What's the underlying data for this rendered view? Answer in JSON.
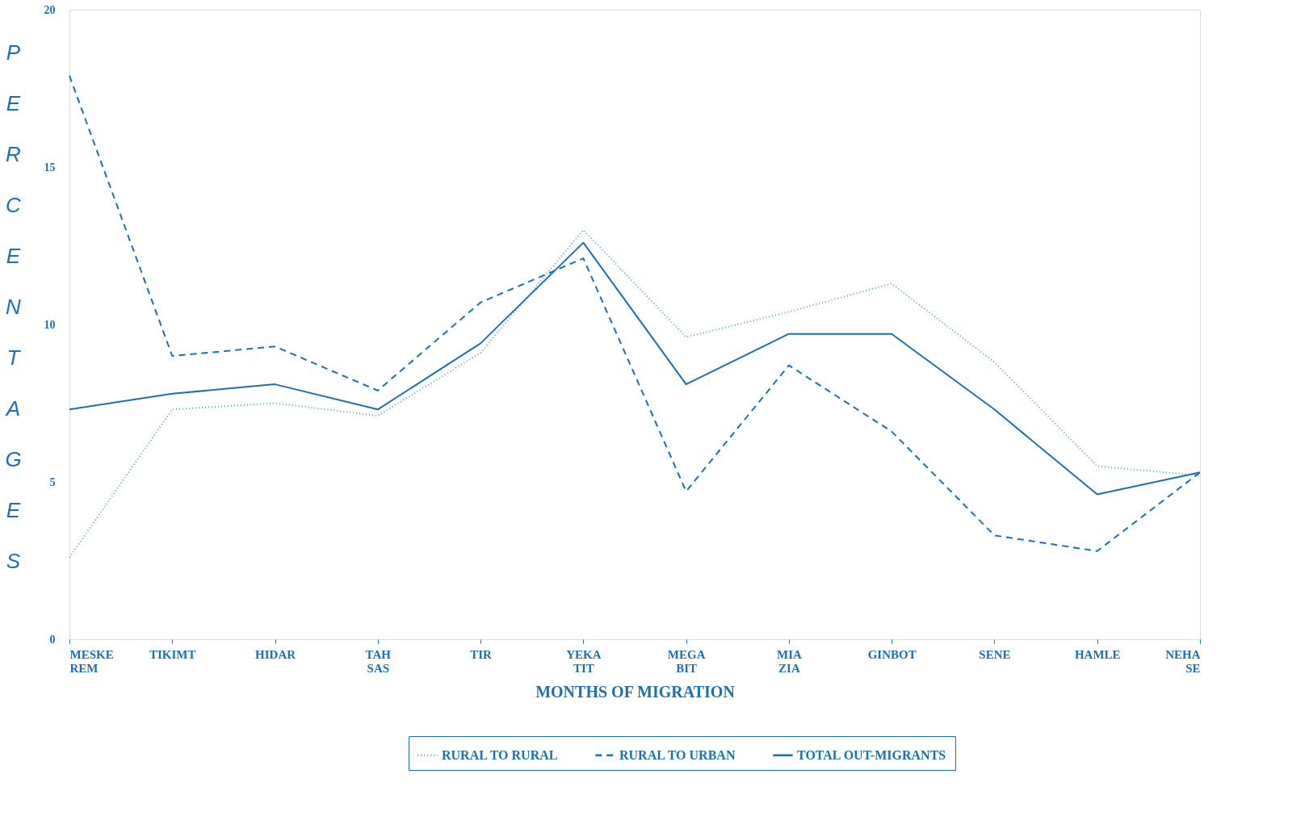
{
  "chart_data": {
    "type": "line",
    "xlabel": "MONTHS OF MIGRATION",
    "ylabel": "PERCENTAGES",
    "categories": [
      "MESKE REM",
      "TIKIMT",
      "HIDAR",
      "TAH SAS",
      "TIR",
      "YEKA TIT",
      "MEGA BIT",
      "MIA ZIA",
      "GINBOT",
      "SENE",
      "HAMLE",
      "NEHA SE"
    ],
    "ylim": [
      0,
      20
    ],
    "yticks": [
      0,
      5,
      10,
      15,
      20
    ],
    "grid": false,
    "legend": "bottom",
    "marker": "none",
    "series": [
      {
        "name": "RURAL TO RURAL",
        "color": "#5b9bd0",
        "line_style": "dotted",
        "values": [
          2.6,
          7.3,
          7.5,
          7.1,
          9.1,
          13.0,
          9.6,
          10.4,
          11.3,
          8.8,
          5.5,
          5.2
        ]
      },
      {
        "name": "RURAL TO URBAN",
        "color": "#1f6fae",
        "line_style": "dashed",
        "values": [
          17.9,
          9.0,
          9.3,
          7.9,
          10.7,
          12.1,
          4.7,
          8.7,
          6.6,
          3.3,
          2.8,
          5.3
        ]
      },
      {
        "name": "TOTAL OUT-MIGRANTS",
        "color": "#1f6fae",
        "line_style": "solid",
        "values": [
          7.3,
          7.8,
          8.1,
          7.3,
          9.4,
          12.6,
          8.1,
          9.7,
          9.7,
          7.3,
          4.6,
          5.3
        ]
      }
    ]
  }
}
